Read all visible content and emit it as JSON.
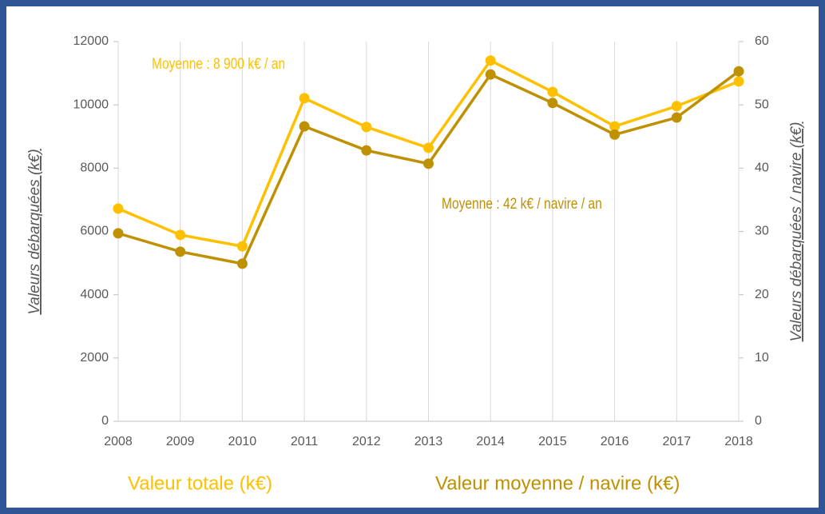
{
  "chart_data": {
    "type": "line",
    "categories": [
      "2008",
      "2009",
      "2010",
      "2011",
      "2012",
      "2013",
      "2014",
      "2015",
      "2016",
      "2017",
      "2018"
    ],
    "series": [
      {
        "name": "Valeur totale (k€)",
        "color": "#ffc000",
        "axis": "y",
        "values": [
          6720,
          5890,
          5530,
          10210,
          9300,
          8640,
          11400,
          10410,
          9320,
          9960,
          10740
        ]
      },
      {
        "name": "Valeur moyenne / navire (k€)",
        "color": "#bf9000",
        "axis": "y2",
        "values": [
          29.7,
          26.8,
          24.9,
          46.6,
          42.8,
          40.7,
          54.8,
          50.3,
          45.3,
          48.0,
          55.3
        ]
      }
    ],
    "ylabel": "Valeurs débarquées (k€)",
    "y2label": "Valeurs débarquées / navire (k€)",
    "ylim": [
      0,
      12000
    ],
    "yticks": [
      0,
      2000,
      4000,
      6000,
      8000,
      10000,
      12000
    ],
    "y2lim": [
      0,
      60
    ],
    "y2ticks": [
      0,
      10,
      20,
      30,
      40,
      50,
      60
    ],
    "annotations": [
      "Moyenne : 8 900 k€ / an",
      "Moyenne : 42 k€ / navire / an"
    ],
    "grid": true
  }
}
